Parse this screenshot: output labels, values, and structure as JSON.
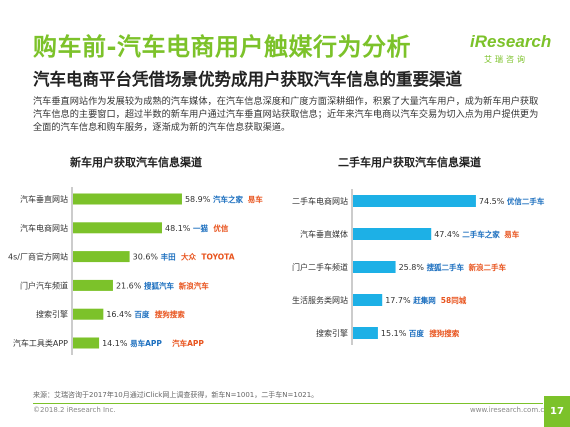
{
  "header": {
    "title": "购车前-汽车电商用户触媒行为分析",
    "logo_text": "iResearch",
    "logo_sub": "艾瑞咨询",
    "subtitle": "汽车电商平台凭借场景优势成用户获取汽车信息的重要渠道",
    "description": "汽车垂直网站作为发展较为成熟的汽车媒体，在汽车信息深度和广度方面深耕细作，积累了大量汽车用户，成为新车用户获取汽车信息的主要窗口，超过半数的新车用户通过汽车垂直网站获取信息；近年来汽车电商以汽车交易为切入点为用户提供更为全面的汽车信息和购车服务，逐渐成为新的汽车信息获取渠道。"
  },
  "colors": {
    "accent": "#7cc22a",
    "blue": "#1db0e6",
    "bar_green": "#7cc22a"
  },
  "chart_data": [
    {
      "type": "bar",
      "orientation": "horizontal",
      "title": "新车用户获取汽车信息渠道",
      "categories": [
        "汽车垂直网站",
        "汽车电商网站",
        "4s/厂商官方网站",
        "门户汽车频道",
        "搜索引擎",
        "汽车工具类APP"
      ],
      "values": [
        58.9,
        48.1,
        30.6,
        21.6,
        16.4,
        14.1
      ],
      "value_labels": [
        "58.9%",
        "48.1%",
        "30.6%",
        "21.6%",
        "16.4%",
        "14.1%"
      ],
      "logos": [
        [
          "汽车之家",
          "易车"
        ],
        [
          "一猫",
          "优信"
        ],
        [
          "丰田",
          "大众",
          "TOYOTA"
        ],
        [
          "搜狐汽车",
          "新浪汽车"
        ],
        [
          "百度",
          "搜狗搜索"
        ],
        [
          "易车APP",
          "汽车APP"
        ]
      ],
      "color": "#7cc22a"
    },
    {
      "type": "bar",
      "orientation": "horizontal",
      "title": "二手车用户获取汽车信息渠道",
      "categories": [
        "二手车电商网站",
        "汽车垂直媒体",
        "门户二手车频道",
        "生活服务类网站",
        "搜索引擎"
      ],
      "values": [
        74.5,
        47.4,
        25.8,
        17.7,
        15.1
      ],
      "value_labels": [
        "74.5%",
        "47.4%",
        "25.8%",
        "17.7%",
        "15.1%"
      ],
      "logos": [
        [
          "优信二手车"
        ],
        [
          "二手车之家",
          "易车"
        ],
        [
          "搜狐二手车",
          "新浪二手车"
        ],
        [
          "赶集网",
          "58同城"
        ],
        [
          "百度",
          "搜狗搜索"
        ]
      ],
      "color": "#1db0e6"
    }
  ],
  "footer": {
    "source": "来源：艾瑞咨询于2017年10月通过iClick网上调查获得，新车N=1001，二手车N=1021。",
    "copyright": "©2018.2  iResearch Inc.",
    "website": "www.iresearch.com.cn",
    "page": "17"
  }
}
